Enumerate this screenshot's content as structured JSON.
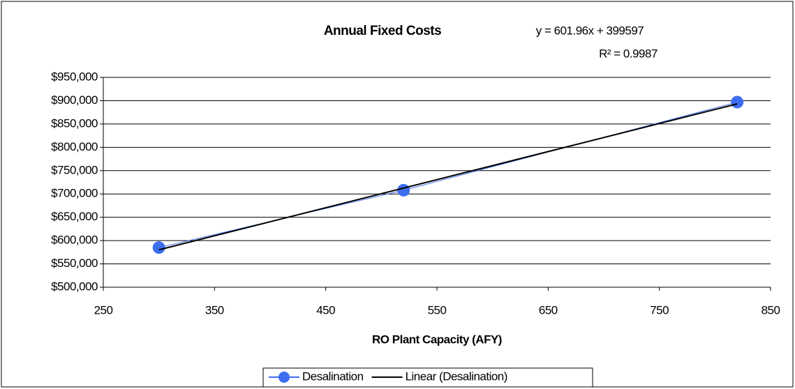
{
  "chart_data": {
    "type": "scatter",
    "title": "Annual Fixed Costs",
    "equation": "y = 601.96x + 399597",
    "r_squared": "R² = 0.9987",
    "x_label": "RO Plant Capacity (AFY)",
    "series": [
      {
        "name": "Desalination",
        "color": "#3d6ef0",
        "x": [
          300,
          520,
          820
        ],
        "values": [
          585000,
          708000,
          897000
        ]
      },
      {
        "name": "Linear (Desalination)",
        "color": "#000000",
        "x": [
          300,
          820
        ],
        "values": [
          580185,
          893204
        ]
      }
    ],
    "xlim": [
      250,
      850
    ],
    "xticks": [
      250,
      350,
      450,
      550,
      650,
      750,
      850
    ],
    "ylim": [
      500000,
      950000
    ],
    "yticks": [
      {
        "value": 500000,
        "label": "$500,000"
      },
      {
        "value": 550000,
        "label": "$550,000"
      },
      {
        "value": 600000,
        "label": "$600,000"
      },
      {
        "value": 650000,
        "label": "$650,000"
      },
      {
        "value": 700000,
        "label": "$700,000"
      },
      {
        "value": 750000,
        "label": "$750,000"
      },
      {
        "value": 800000,
        "label": "$800,000"
      },
      {
        "value": 850000,
        "label": "$850,000"
      },
      {
        "value": 900000,
        "label": "$900,000"
      },
      {
        "value": 950000,
        "label": "$950,000"
      }
    ],
    "grid": true
  }
}
